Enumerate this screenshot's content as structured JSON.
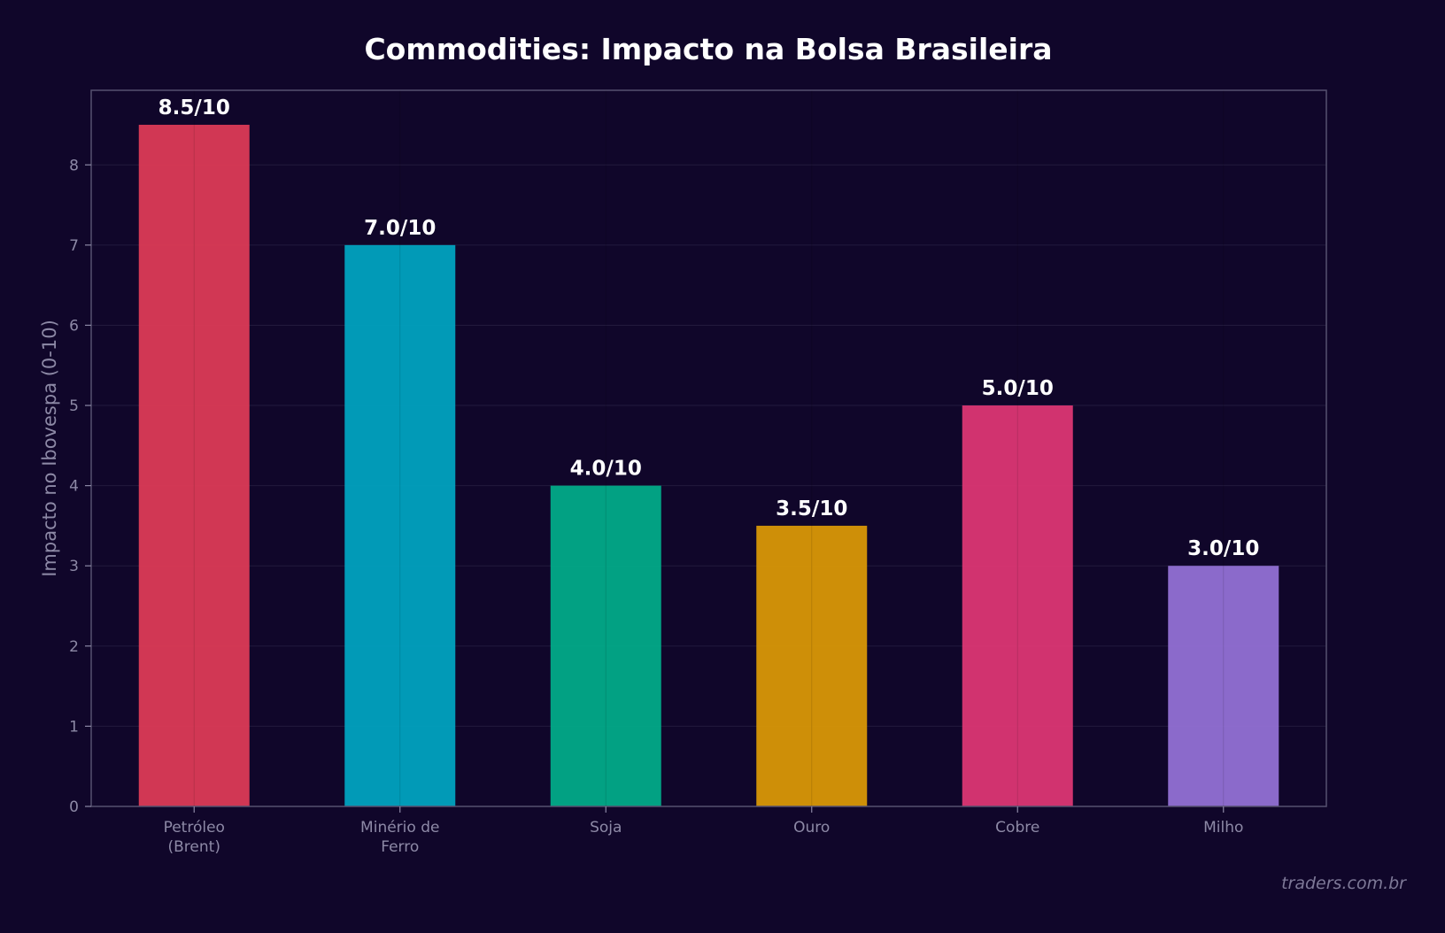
{
  "chart_data": {
    "type": "bar",
    "title": "Commodities: Impacto na Bolsa Brasileira",
    "xlabel": "",
    "ylabel": "Impacto no Ibovespa (0-10)",
    "categories": [
      "Petróleo\n(Brent)",
      "Minério de\nFerro",
      "Soja",
      "Ouro",
      "Cobre",
      "Milho"
    ],
    "values": [
      8.5,
      7.0,
      4.0,
      3.5,
      5.0,
      3.0
    ],
    "data_labels": [
      "8.5/10",
      "7.0/10",
      "4.0/10",
      "3.5/10",
      "5.0/10",
      "3.0/10"
    ],
    "colors": [
      "#dc3a56",
      "#01a2bf",
      "#02aa88",
      "#d99706",
      "#dc3673",
      "#9270d4"
    ],
    "ylim": [
      0,
      8.93
    ],
    "yticks": [
      0,
      1,
      2,
      3,
      4,
      5,
      6,
      7,
      8
    ],
    "grid": true,
    "legend": "none"
  },
  "watermark": "traders.com.br",
  "colors": {
    "background": "#10062a",
    "axis_spine": "#55506f",
    "tick_label": "#8d89a6",
    "grid": "#221a3d",
    "title": "#ffffff",
    "data_label": "#ffffff"
  }
}
